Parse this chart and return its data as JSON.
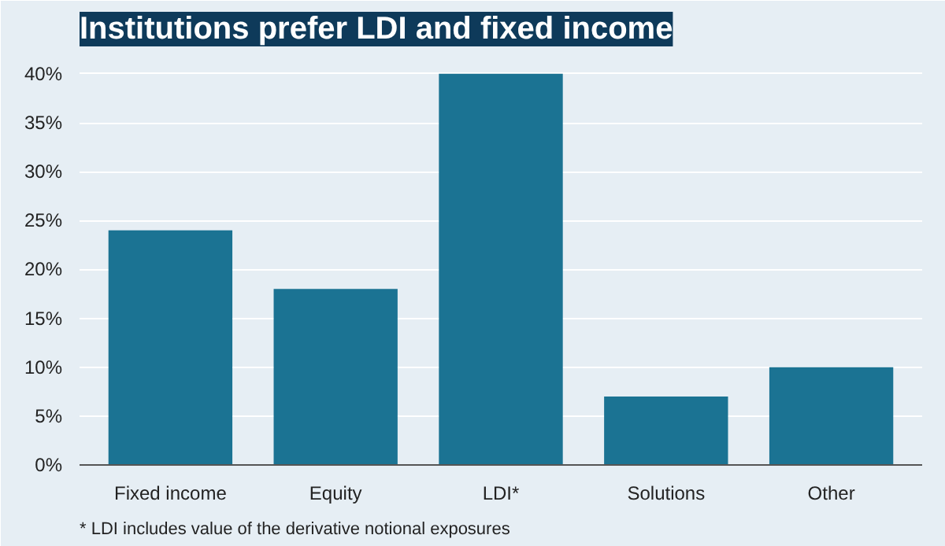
{
  "chart_data": {
    "type": "bar",
    "title": "Institutions prefer LDI and fixed income",
    "categories": [
      "Fixed income",
      "Equity",
      "LDI*",
      "Solutions",
      "Other"
    ],
    "values": [
      24,
      18,
      40,
      7,
      10
    ],
    "color": "#1b7393",
    "ylim": [
      0,
      42
    ],
    "yticks": [
      {
        "value": 0,
        "label": "0%"
      },
      {
        "value": 5,
        "label": "5%"
      },
      {
        "value": 10,
        "label": "10%"
      },
      {
        "value": 15,
        "label": "15%"
      },
      {
        "value": 20,
        "label": "20%"
      },
      {
        "value": 25,
        "label": "25%"
      },
      {
        "value": 30,
        "label": "30%"
      },
      {
        "value": 35,
        "label": "35%"
      },
      {
        "value": 40,
        "label": "40%"
      }
    ],
    "grid": "y",
    "annotations": [
      "* LDI includes value of the derivative notional exposures"
    ]
  }
}
